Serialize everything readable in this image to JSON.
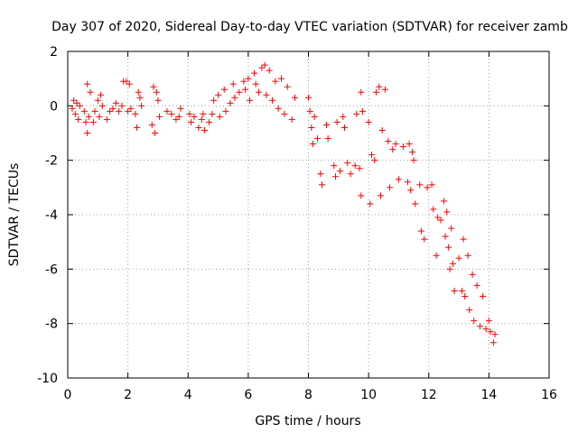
{
  "chart_data": {
    "type": "scatter",
    "title": "Day 307 of 2020, Sidereal Day-to-day VTEC variation (SDTVAR) for receiver zamb",
    "xlabel": "GPS time / hours",
    "ylabel": "SDTVAR / TECUs",
    "xlim": [
      0,
      16
    ],
    "ylim": [
      -10,
      2
    ],
    "xticks": [
      "0",
      "2",
      "4",
      "6",
      "8",
      "10",
      "12",
      "14",
      "16"
    ],
    "yticks": [
      "2",
      "0",
      "-2",
      "-4",
      "-6",
      "-8",
      "-10"
    ],
    "xtick_values": [
      0,
      2,
      4,
      6,
      8,
      10,
      12,
      14,
      16
    ],
    "ytick_values": [
      2,
      0,
      -2,
      -4,
      -6,
      -8,
      -10
    ],
    "grid": true,
    "marker": "+",
    "marker_color": "#ff0000",
    "series": [
      {
        "name": "SDTVAR",
        "points": [
          [
            0.15,
            -0.1
          ],
          [
            0.2,
            0.2
          ],
          [
            0.25,
            -0.3
          ],
          [
            0.3,
            0.1
          ],
          [
            0.35,
            -0.5
          ],
          [
            0.4,
            0.0
          ],
          [
            0.55,
            -0.2
          ],
          [
            0.6,
            -0.6
          ],
          [
            0.65,
            -1.0
          ],
          [
            0.65,
            0.8
          ],
          [
            0.7,
            -0.4
          ],
          [
            0.75,
            0.5
          ],
          [
            0.85,
            -0.6
          ],
          [
            0.9,
            -0.2
          ],
          [
            1.0,
            0.2
          ],
          [
            1.05,
            -0.4
          ],
          [
            1.1,
            0.4
          ],
          [
            1.15,
            0.0
          ],
          [
            1.3,
            -0.5
          ],
          [
            1.4,
            -0.2
          ],
          [
            1.5,
            -0.1
          ],
          [
            1.6,
            0.1
          ],
          [
            1.7,
            -0.2
          ],
          [
            1.8,
            0.0
          ],
          [
            1.85,
            0.9
          ],
          [
            1.95,
            0.9
          ],
          [
            2.05,
            0.8
          ],
          [
            2.0,
            -0.2
          ],
          [
            2.1,
            -0.1
          ],
          [
            2.25,
            -0.3
          ],
          [
            2.3,
            -0.8
          ],
          [
            2.35,
            0.5
          ],
          [
            2.4,
            0.3
          ],
          [
            2.45,
            0.0
          ],
          [
            2.8,
            -0.7
          ],
          [
            2.85,
            0.7
          ],
          [
            2.9,
            -1.0
          ],
          [
            2.95,
            0.5
          ],
          [
            3.0,
            0.2
          ],
          [
            3.05,
            -0.4
          ],
          [
            3.3,
            -0.2
          ],
          [
            3.45,
            -0.3
          ],
          [
            3.6,
            -0.5
          ],
          [
            3.7,
            -0.4
          ],
          [
            3.75,
            -0.1
          ],
          [
            4.05,
            -0.3
          ],
          [
            4.1,
            -0.6
          ],
          [
            4.2,
            -0.4
          ],
          [
            4.35,
            -0.8
          ],
          [
            4.45,
            -0.5
          ],
          [
            4.5,
            -0.3
          ],
          [
            4.55,
            -0.9
          ],
          [
            4.7,
            -0.6
          ],
          [
            4.8,
            -0.3
          ],
          [
            4.85,
            0.2
          ],
          [
            5.0,
            0.4
          ],
          [
            5.05,
            -0.4
          ],
          [
            5.2,
            0.6
          ],
          [
            5.25,
            -0.2
          ],
          [
            5.4,
            0.1
          ],
          [
            5.5,
            0.8
          ],
          [
            5.55,
            0.3
          ],
          [
            5.7,
            0.5
          ],
          [
            5.85,
            0.9
          ],
          [
            5.9,
            0.6
          ],
          [
            6.0,
            1.0
          ],
          [
            6.05,
            0.2
          ],
          [
            6.2,
            1.2
          ],
          [
            6.25,
            0.8
          ],
          [
            6.35,
            0.5
          ],
          [
            6.45,
            1.4
          ],
          [
            6.55,
            1.5
          ],
          [
            6.6,
            0.4
          ],
          [
            6.7,
            1.3
          ],
          [
            6.8,
            0.2
          ],
          [
            6.9,
            0.9
          ],
          [
            7.0,
            -0.1
          ],
          [
            7.1,
            1.0
          ],
          [
            7.2,
            -0.3
          ],
          [
            7.3,
            0.7
          ],
          [
            7.45,
            -0.5
          ],
          [
            7.55,
            0.3
          ],
          [
            8.0,
            0.3
          ],
          [
            8.05,
            -0.2
          ],
          [
            8.1,
            -0.8
          ],
          [
            8.15,
            -1.4
          ],
          [
            8.2,
            -0.4
          ],
          [
            8.3,
            -1.2
          ],
          [
            8.4,
            -2.5
          ],
          [
            8.45,
            -2.9
          ],
          [
            8.6,
            -0.7
          ],
          [
            8.65,
            -1.2
          ],
          [
            8.85,
            -2.2
          ],
          [
            8.9,
            -2.6
          ],
          [
            8.95,
            -0.6
          ],
          [
            9.05,
            -2.4
          ],
          [
            9.15,
            -0.4
          ],
          [
            9.2,
            -0.8
          ],
          [
            9.3,
            -2.1
          ],
          [
            9.4,
            -2.5
          ],
          [
            9.55,
            -2.2
          ],
          [
            9.6,
            -0.3
          ],
          [
            9.75,
            0.5
          ],
          [
            9.8,
            -0.2
          ],
          [
            9.75,
            -3.3
          ],
          [
            9.7,
            -2.3
          ],
          [
            10.0,
            -0.6
          ],
          [
            10.05,
            -3.6
          ],
          [
            10.1,
            -1.8
          ],
          [
            10.2,
            -2.0
          ],
          [
            10.25,
            0.5
          ],
          [
            10.35,
            0.7
          ],
          [
            10.4,
            -3.3
          ],
          [
            10.45,
            -0.9
          ],
          [
            10.55,
            0.6
          ],
          [
            10.65,
            -1.3
          ],
          [
            10.7,
            -3.0
          ],
          [
            10.8,
            -1.6
          ],
          [
            10.9,
            -1.4
          ],
          [
            11.0,
            -2.7
          ],
          [
            11.15,
            -1.5
          ],
          [
            11.3,
            -2.8
          ],
          [
            11.35,
            -1.4
          ],
          [
            11.4,
            -3.1
          ],
          [
            11.45,
            -1.7
          ],
          [
            11.5,
            -2.0
          ],
          [
            11.55,
            -3.6
          ],
          [
            11.7,
            -2.9
          ],
          [
            11.75,
            -4.6
          ],
          [
            11.85,
            -4.9
          ],
          [
            11.95,
            -3.0
          ],
          [
            12.1,
            -2.9
          ],
          [
            12.15,
            -3.8
          ],
          [
            12.25,
            -5.5
          ],
          [
            12.3,
            -4.1
          ],
          [
            12.4,
            -4.2
          ],
          [
            12.5,
            -3.5
          ],
          [
            12.55,
            -4.8
          ],
          [
            12.6,
            -3.9
          ],
          [
            12.65,
            -5.2
          ],
          [
            12.7,
            -6.0
          ],
          [
            12.75,
            -4.5
          ],
          [
            12.8,
            -5.8
          ],
          [
            12.85,
            -6.8
          ],
          [
            13.0,
            -5.6
          ],
          [
            13.1,
            -6.8
          ],
          [
            13.15,
            -4.9
          ],
          [
            13.2,
            -7.0
          ],
          [
            13.3,
            -5.5
          ],
          [
            13.35,
            -7.5
          ],
          [
            13.45,
            -6.2
          ],
          [
            13.5,
            -7.9
          ],
          [
            13.6,
            -6.6
          ],
          [
            13.7,
            -8.1
          ],
          [
            13.8,
            -7.0
          ],
          [
            13.9,
            -8.2
          ],
          [
            14.0,
            -7.9
          ],
          [
            14.05,
            -8.3
          ],
          [
            14.15,
            -8.7
          ],
          [
            14.2,
            -8.4
          ]
        ]
      }
    ]
  }
}
